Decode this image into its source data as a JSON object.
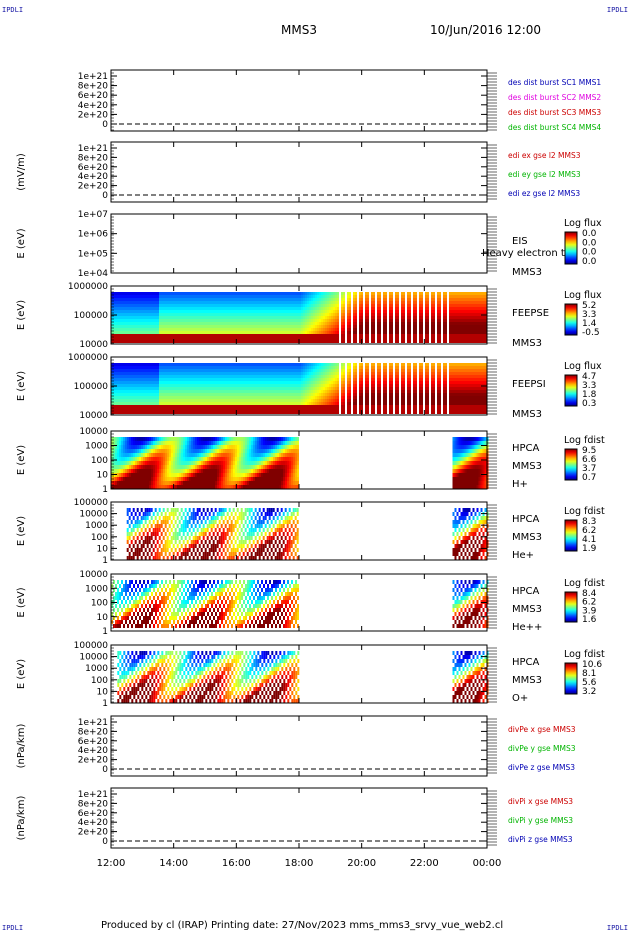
{
  "header": {
    "corner_tl": "IPDLI",
    "corner_tr": "IPDLI",
    "corner_bl": "IPDLI",
    "corner_br": "IPDLI",
    "spacecraft": "MMS3",
    "datetime": "10/Jun/2016 12:00"
  },
  "footer": {
    "text": "Produced by cl (IRAP)   Printing date: 27/Nov/2023   mms_mms3_srvy_vue_web2.cl"
  },
  "colors": {
    "red": "#cc0000",
    "magenta": "#e000e0",
    "green": "#00b400",
    "blue": "#0000b4"
  },
  "x_axis": {
    "ticks": [
      "12:00",
      "14:00",
      "16:00",
      "18:00",
      "20:00",
      "22:00",
      "00:00"
    ],
    "range_hours": [
      12,
      24
    ]
  },
  "chart_data": [
    {
      "type": "line",
      "id": "des-dist",
      "ylabel": "",
      "yticks": [
        "1e+21",
        "8e+20",
        "6e+20",
        "4e+20",
        "2e+20",
        "0"
      ],
      "series": [
        {
          "name": "des dist burst SC1 MMS1",
          "color": "#0000b4"
        },
        {
          "name": "des dist burst SC2 MMS2",
          "color": "#e000e0"
        },
        {
          "name": "des dist burst SC3 MMS3",
          "color": "#cc0000"
        },
        {
          "name": "des dist burst SC4 MMS4",
          "color": "#00b400"
        }
      ],
      "values": "no data"
    },
    {
      "type": "line",
      "id": "edi-e",
      "ylabel": "(mV/m)",
      "yticks": [
        "1e+21",
        "8e+20",
        "6e+20",
        "4e+20",
        "2e+20",
        "0"
      ],
      "series": [
        {
          "name": "edi ex gse l2 MMS3",
          "color": "#cc0000"
        },
        {
          "name": "edi ey gse l2 MMS3",
          "color": "#00b400"
        },
        {
          "name": "edi ez gse l2 MMS3",
          "color": "#0000b4"
        }
      ],
      "values": "no data"
    },
    {
      "type": "heatmap",
      "id": "eis",
      "ylabel": "E (eV)",
      "yscale": "log",
      "yticks": [
        "1e+07",
        "1e+06",
        "1e+05",
        "1e+04"
      ],
      "label_lines": [
        "EIS",
        "MMS3"
      ],
      "overlay_text": "Heavy electron to",
      "colorbar": {
        "title": "Log flux",
        "ticks": [
          "0.0",
          "0.0",
          "0.0",
          "0.0"
        ]
      },
      "coverage": []
    },
    {
      "type": "heatmap",
      "id": "feepse",
      "ylabel": "E (eV)",
      "yscale": "log",
      "yticks": [
        "1000000",
        "100000",
        "10000"
      ],
      "label_lines": [
        "FEEPSE",
        "MMS3"
      ],
      "colorbar": {
        "title": "Log flux",
        "ticks": [
          "5.2",
          "3.3",
          "1.4",
          "-0.5"
        ]
      },
      "coverage": [
        [
          12.0,
          24.0
        ]
      ]
    },
    {
      "type": "heatmap",
      "id": "feepsi",
      "ylabel": "E (eV)",
      "yscale": "log",
      "yticks": [
        "1000000",
        "100000",
        "10000"
      ],
      "label_lines": [
        "FEEPSI",
        "MMS3"
      ],
      "colorbar": {
        "title": "Log flux",
        "ticks": [
          "4.7",
          "3.3",
          "1.8",
          "0.3"
        ]
      },
      "coverage": [
        [
          12.0,
          24.0
        ]
      ]
    },
    {
      "type": "heatmap",
      "id": "hpca-h",
      "ylabel": "E (eV)",
      "yscale": "log",
      "yticks": [
        "10000",
        "1000",
        "100",
        "10",
        "1"
      ],
      "label_lines": [
        "HPCA",
        "MMS3",
        "H+"
      ],
      "colorbar": {
        "title": "Log fdist",
        "ticks": [
          "9.5",
          "6.6",
          "3.7",
          "0.7"
        ]
      },
      "coverage": [
        [
          12.0,
          17.95
        ],
        [
          22.9,
          24.0
        ]
      ]
    },
    {
      "type": "heatmap",
      "id": "hpca-he",
      "ylabel": "E (eV)",
      "yscale": "log",
      "yticks": [
        "100000",
        "10000",
        "1000",
        "100",
        "10",
        "1"
      ],
      "label_lines": [
        "HPCA",
        "MMS3",
        "He+"
      ],
      "colorbar": {
        "title": "Log fdist",
        "ticks": [
          "8.3",
          "6.2",
          "4.1",
          "1.9"
        ]
      },
      "coverage": [
        [
          12.5,
          17.95
        ],
        [
          22.9,
          24.0
        ]
      ]
    },
    {
      "type": "heatmap",
      "id": "hpca-he2",
      "ylabel": "E (eV)",
      "yscale": "log",
      "yticks": [
        "10000",
        "1000",
        "100",
        "10",
        "1"
      ],
      "label_lines": [
        "HPCA",
        "MMS3",
        "He++"
      ],
      "colorbar": {
        "title": "Log fdist",
        "ticks": [
          "8.4",
          "6.2",
          "3.9",
          "1.6"
        ]
      },
      "coverage": [
        [
          12.0,
          17.95
        ],
        [
          22.9,
          24.0
        ]
      ]
    },
    {
      "type": "heatmap",
      "id": "hpca-o",
      "ylabel": "E (eV)",
      "yscale": "log",
      "yticks": [
        "100000",
        "10000",
        "1000",
        "100",
        "10",
        "1"
      ],
      "label_lines": [
        "HPCA",
        "MMS3",
        "O+"
      ],
      "colorbar": {
        "title": "Log fdist",
        "ticks": [
          "10.6",
          "8.1",
          "5.6",
          "3.2"
        ]
      },
      "coverage": [
        [
          12.2,
          17.95
        ],
        [
          22.9,
          24.0
        ]
      ]
    },
    {
      "type": "line",
      "id": "divpe",
      "ylabel": "(nPa/km)",
      "yticks": [
        "1e+21",
        "8e+20",
        "6e+20",
        "4e+20",
        "2e+20",
        "0"
      ],
      "series": [
        {
          "name": "divPe x gse MMS3",
          "color": "#cc0000"
        },
        {
          "name": "divPe y gse MMS3",
          "color": "#00b400"
        },
        {
          "name": "divPe z gse MMS3",
          "color": "#0000b4"
        }
      ],
      "values": "no data"
    },
    {
      "type": "line",
      "id": "divpi",
      "ylabel": "(nPa/km)",
      "yticks": [
        "1e+21",
        "8e+20",
        "6e+20",
        "4e+20",
        "2e+20",
        "0"
      ],
      "series": [
        {
          "name": "divPi x gse MMS3",
          "color": "#cc0000"
        },
        {
          "name": "divPi y gse MMS3",
          "color": "#00b400"
        },
        {
          "name": "divPi z gse MMS3",
          "color": "#0000b4"
        }
      ],
      "values": "no data"
    }
  ]
}
